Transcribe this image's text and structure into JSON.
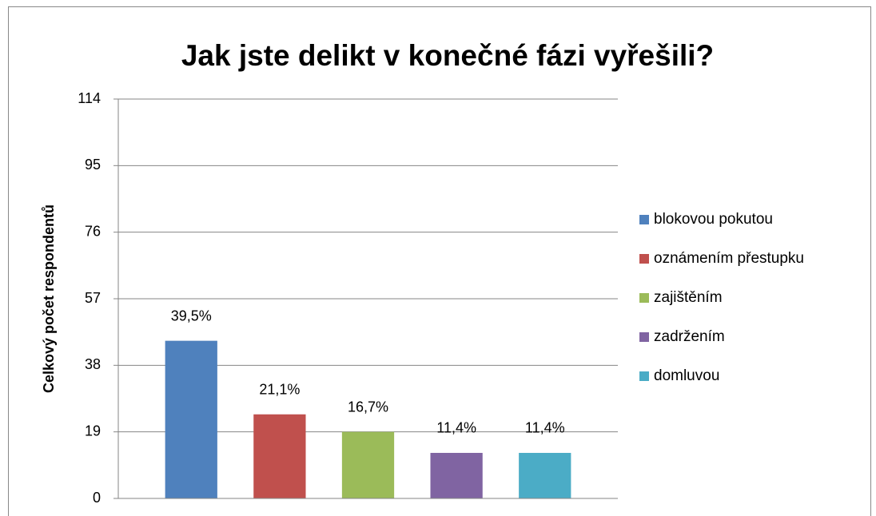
{
  "chart_data": {
    "type": "bar",
    "title": "Jak jste delikt v konečné fázi vyřešili?",
    "y_label": "Celkový počet respondentů",
    "categories": [
      null
    ],
    "series": [
      {
        "name": "blokovou pokutou",
        "color": "#4f81bd",
        "values": [
          45
        ]
      },
      {
        "name": "oznámením přestupku",
        "color": "#c0504d",
        "values": [
          24
        ]
      },
      {
        "name": "zajištěním",
        "color": "#9bbb59",
        "values": [
          19
        ]
      },
      {
        "name": "zadržením",
        "color": "#8064a2",
        "values": [
          13
        ]
      },
      {
        "name": "domluvou",
        "color": "#4bacc6",
        "values": [
          13
        ]
      }
    ],
    "annotations": [
      "39,5%",
      "21,1%",
      "16,7%",
      "11,4%",
      "11,4%"
    ],
    "ylim": [
      0,
      114
    ],
    "yticks": [
      0,
      19,
      38,
      57,
      76,
      95,
      114
    ],
    "grid": true,
    "legend": "right"
  }
}
